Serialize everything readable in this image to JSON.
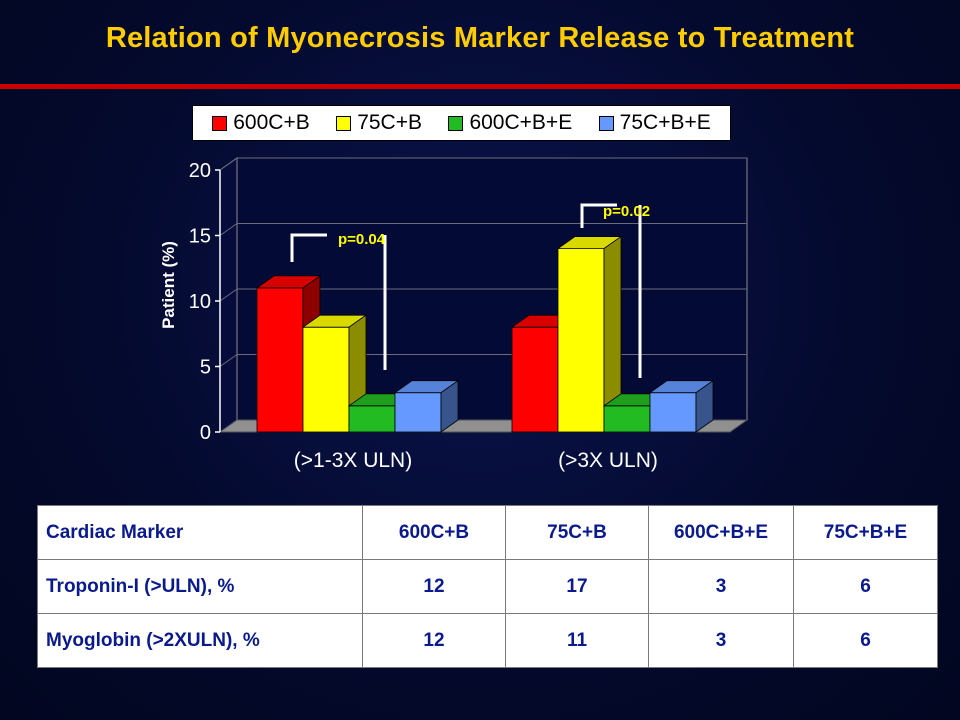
{
  "title": "Relation of Myonecrosis Marker Release to Treatment",
  "colors": {
    "title": "#ffcc00",
    "rule": "#cc0000",
    "table_text": "#0a1a8c"
  },
  "chart_data": {
    "type": "bar",
    "categories": [
      "(>1-3X ULN)",
      "(>3X ULN)"
    ],
    "series": [
      {
        "name": "600C+B",
        "color": "#ff0000",
        "values": [
          11,
          8
        ]
      },
      {
        "name": "75C+B",
        "color": "#ffff00",
        "values": [
          8,
          14
        ]
      },
      {
        "name": "600C+B+E",
        "color": "#22bb22",
        "values": [
          2,
          2
        ]
      },
      {
        "name": "75C+B+E",
        "color": "#6699ff",
        "values": [
          3,
          3
        ]
      }
    ],
    "ylabel": "Patient (%)",
    "xlabel": "",
    "ylim": [
      0,
      20
    ],
    "yticks": [
      0,
      5,
      10,
      15,
      20
    ],
    "grid": true,
    "legend_position": "top",
    "annotations": [
      "p=0.04",
      "p=0.02"
    ]
  },
  "table": {
    "headers": [
      "Cardiac Marker",
      "600C+B",
      "75C+B",
      "600C+B+E",
      "75C+B+E"
    ],
    "rows": [
      [
        "Troponin-I (>ULN), %",
        "12",
        "17",
        "3",
        "6"
      ],
      [
        "Myoglobin (>2XULN), %",
        "12",
        "11",
        "3",
        "6"
      ]
    ]
  }
}
